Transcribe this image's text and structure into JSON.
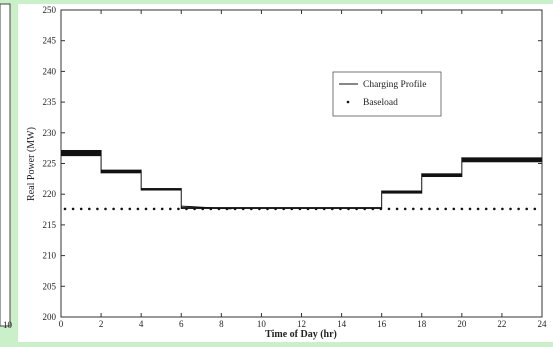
{
  "colors": {
    "frame_background": "#c9f0c9",
    "plot_background": "#ffffff",
    "axis": "#333333",
    "series_line": "#111111",
    "baseload_dots": "#111111"
  },
  "chart_data": {
    "type": "line",
    "xlabel": "Time of Day (hr)",
    "ylabel": "Real Power (MW)",
    "xlim": [
      0,
      24
    ],
    "ylim": [
      200,
      250
    ],
    "xticks": [
      0,
      2,
      4,
      6,
      8,
      10,
      12,
      14,
      16,
      18,
      20,
      22,
      24
    ],
    "yticks": [
      200,
      205,
      210,
      215,
      220,
      225,
      230,
      235,
      240,
      245,
      250
    ],
    "grid": false,
    "legend_position": "top-right",
    "series": [
      {
        "name": "Charging Profile",
        "style": "line",
        "band": [
          {
            "x0": 0,
            "x1": 2,
            "low": 226.2,
            "high": 227.2
          },
          {
            "x0": 2,
            "x1": 4,
            "low": 223.4,
            "high": 224.0
          },
          {
            "x0": 4,
            "x1": 6,
            "low": 220.6,
            "high": 221.0
          },
          {
            "x0": 6,
            "x1": 16,
            "low": 217.6,
            "high": 217.9
          },
          {
            "x0": 16,
            "x1": 18,
            "low": 220.1,
            "high": 220.6
          },
          {
            "x0": 18,
            "x1": 20,
            "low": 222.8,
            "high": 223.4
          },
          {
            "x0": 20,
            "x1": 24,
            "low": 225.2,
            "high": 226.0
          }
        ]
      },
      {
        "name": "Baseload",
        "style": "dots",
        "x": [
          0,
          24
        ],
        "y": [
          217.6,
          217.6
        ]
      }
    ],
    "left_partial_panel": {
      "visible_tick_label": "10"
    }
  }
}
